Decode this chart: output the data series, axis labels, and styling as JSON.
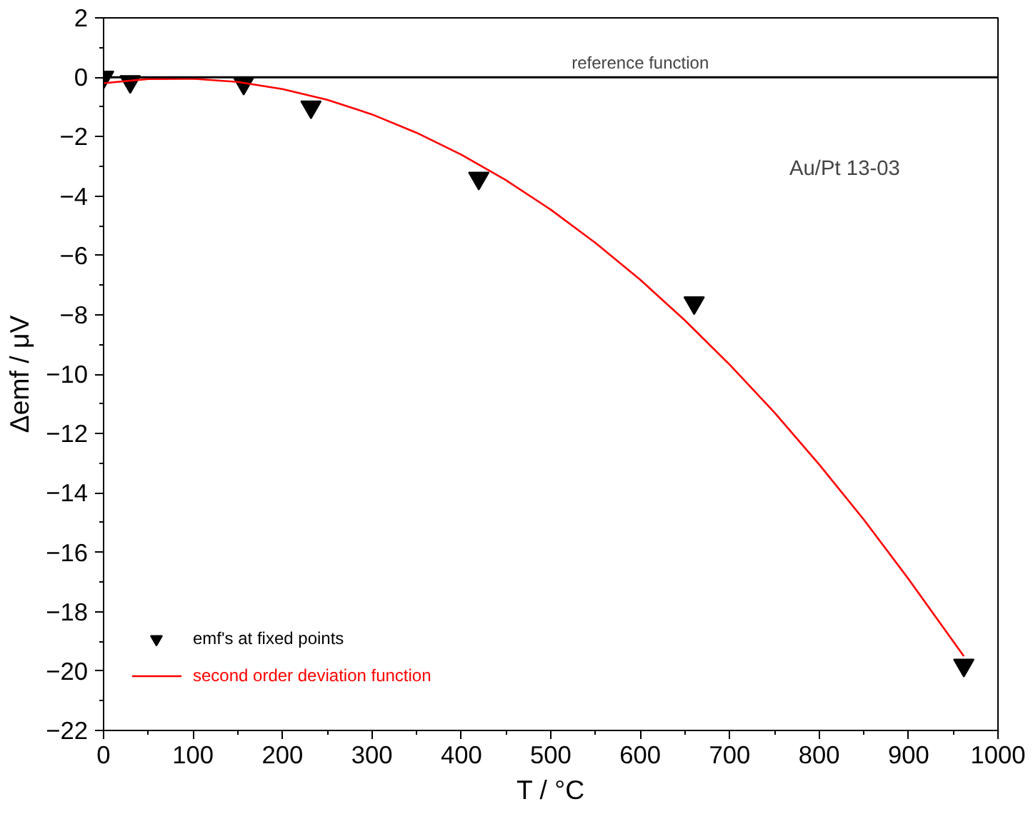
{
  "chart_data": {
    "type": "scatter",
    "xlabel": "T / °C",
    "ylabel": "Δemf / μV",
    "xlim": [
      0,
      1000
    ],
    "ylim": [
      -22,
      2
    ],
    "xticks": [
      0,
      100,
      200,
      300,
      400,
      500,
      600,
      700,
      800,
      900,
      1000
    ],
    "yticks": [
      2,
      0,
      -2,
      -4,
      -6,
      -8,
      -10,
      -12,
      -14,
      -16,
      -18,
      -20,
      -22
    ],
    "series": [
      {
        "name": "emf's at fixed points",
        "marker": "triangle",
        "color": "#000000",
        "x": [
          0.01,
          29.76,
          156.6,
          231.9,
          419.5,
          660.3,
          961.8
        ],
        "values": [
          0,
          -0.15,
          -0.2,
          -1.0,
          -3.4,
          -7.6,
          -19.8
        ]
      },
      {
        "name": "second order deviation function",
        "type": "line",
        "line_style": "solid",
        "color": "#ff0000",
        "x": [
          0,
          50,
          100,
          150,
          200,
          250,
          300,
          350,
          400,
          450,
          500,
          550,
          600,
          650,
          700,
          750,
          800,
          850,
          900,
          961.8
        ],
        "values": [
          -0.2,
          -0.06,
          -0.05,
          -0.16,
          -0.4,
          -0.76,
          -1.25,
          -1.87,
          -2.61,
          -3.47,
          -4.46,
          -5.58,
          -6.82,
          -8.19,
          -9.68,
          -11.29,
          -13.04,
          -14.9,
          -16.9,
          -19.5
        ]
      }
    ],
    "ref_lines": [
      {
        "axis": "y",
        "value": 0,
        "label": "reference function",
        "color": "#000000",
        "line_style": "solid"
      }
    ],
    "annotations": [
      "Au/Pt 13-03"
    ],
    "legend": "bottom left"
  }
}
